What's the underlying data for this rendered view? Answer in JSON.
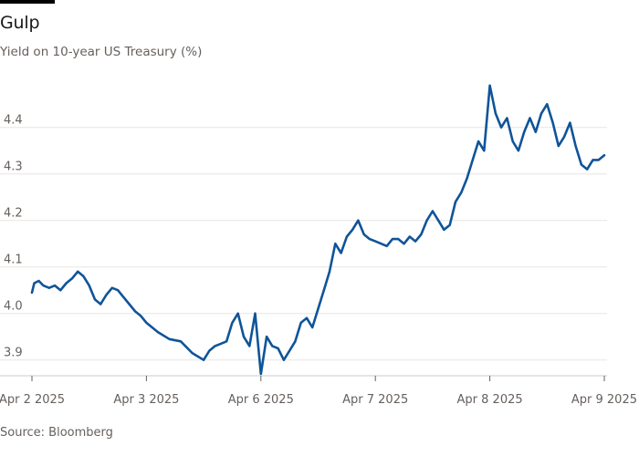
{
  "header": {
    "title": "Gulp",
    "subtitle": "Yield on 10-year US Treasury (%)"
  },
  "footer": {
    "source": "Source: Bloomberg"
  },
  "colors": {
    "line": "#0f5499",
    "grid": "#e9e6e2",
    "tick_text": "#66605c"
  },
  "chart_data": {
    "type": "line",
    "title": "Gulp",
    "subtitle": "Yield on 10-year US Treasury (%)",
    "xlabel": "",
    "ylabel": "",
    "grid": true,
    "ylim": [
      3.87,
      4.47
    ],
    "yticks": [
      3.9,
      4.0,
      4.1,
      4.2,
      4.3,
      4.4
    ],
    "ytick_labels": [
      "3.9",
      "4.0",
      "4.1",
      "4.2",
      "4.3",
      "4.4"
    ],
    "xticks": [
      0,
      1,
      2,
      3,
      4,
      5
    ],
    "xtick_labels": [
      "Apr 2 2025",
      "Apr 3 2025",
      "Apr 6 2025",
      "Apr 7 2025",
      "Apr 8 2025",
      "Apr 9 2025"
    ],
    "series": [
      {
        "x": [
          0.0,
          0.02,
          0.06,
          0.1,
          0.15,
          0.2,
          0.25,
          0.3,
          0.35,
          0.4,
          0.45,
          0.5,
          0.55,
          0.6,
          0.65,
          0.7,
          0.75,
          0.8,
          0.85,
          0.9,
          0.95,
          1.0,
          1.1,
          1.2,
          1.3,
          1.4,
          1.5,
          1.55,
          1.6,
          1.65,
          1.7,
          1.75,
          1.8,
          1.85,
          1.9,
          1.95,
          2.0,
          2.05,
          2.1,
          2.15,
          2.2,
          2.25,
          2.3,
          2.35,
          2.4,
          2.45,
          2.5,
          2.55,
          2.6,
          2.65,
          2.7,
          2.75,
          2.8,
          2.85,
          2.9,
          2.95,
          3.0,
          3.05,
          3.1,
          3.15,
          3.2,
          3.25,
          3.3,
          3.35,
          3.4,
          3.45,
          3.5,
          3.55,
          3.6,
          3.65,
          3.7,
          3.75,
          3.8,
          3.85,
          3.9,
          3.95,
          4.0,
          4.05,
          4.1,
          4.15,
          4.2,
          4.25,
          4.3,
          4.35,
          4.4,
          4.45,
          4.5,
          4.55,
          4.6,
          4.65,
          4.7,
          4.75,
          4.8,
          4.85,
          4.9,
          4.95,
          5.0
        ],
        "y": [
          4.045,
          4.065,
          4.07,
          4.06,
          4.055,
          4.06,
          4.05,
          4.065,
          4.075,
          4.09,
          4.08,
          4.06,
          4.03,
          4.02,
          4.04,
          4.055,
          4.05,
          4.035,
          4.02,
          4.005,
          3.995,
          3.98,
          3.96,
          3.945,
          3.94,
          3.915,
          3.9,
          3.92,
          3.93,
          3.935,
          3.94,
          3.98,
          4.0,
          3.95,
          3.93,
          4.0,
          3.87,
          3.95,
          3.93,
          3.925,
          3.9,
          3.92,
          3.94,
          3.98,
          3.99,
          3.97,
          4.01,
          4.05,
          4.09,
          4.15,
          4.13,
          4.165,
          4.18,
          4.2,
          4.17,
          4.16,
          4.155,
          4.15,
          4.145,
          4.16,
          4.16,
          4.15,
          4.165,
          4.155,
          4.17,
          4.2,
          4.22,
          4.2,
          4.18,
          4.19,
          4.24,
          4.26,
          4.29,
          4.33,
          4.37,
          4.35,
          4.49,
          4.43,
          4.4,
          4.42,
          4.37,
          4.35,
          4.39,
          4.42,
          4.39,
          4.43,
          4.45,
          4.41,
          4.36,
          4.38,
          4.41,
          4.36,
          4.32,
          4.31,
          4.33,
          4.33,
          4.34
        ]
      }
    ]
  }
}
